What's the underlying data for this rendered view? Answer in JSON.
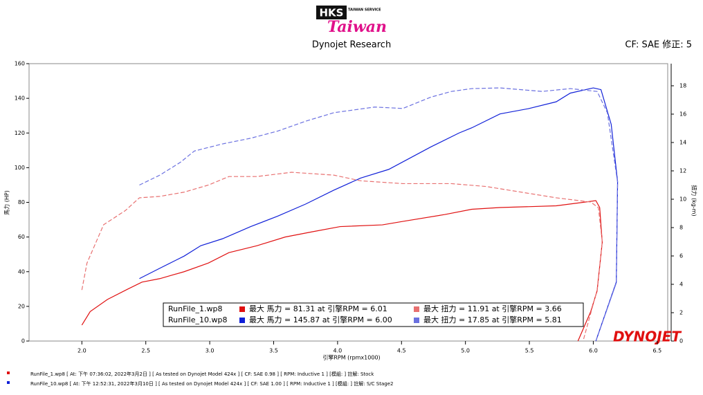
{
  "header": {
    "logo_top": "HKS",
    "logo_sub": "TAIWAN SERVICE",
    "logo_script": "Taiwan",
    "title": "Dynojet Research",
    "correction": "CF: SAE 修正: 5"
  },
  "chart_data": {
    "type": "line",
    "x_label": "引擎RPM (rpmx1000)",
    "y_label": "馬力 (HP)",
    "y2_label": "扭力 (kg-m)",
    "xlim": [
      1.587,
      6.582
    ],
    "xticks": [
      {
        "value": 2,
        "label": "2.0"
      },
      2.5,
      {
        "value": 3,
        "label": "3.0"
      },
      3.5,
      {
        "value": 4,
        "label": "4.0"
      },
      4.5,
      {
        "value": 5,
        "label": "5.0"
      },
      5.5,
      {
        "value": 6,
        "label": "6.0"
      },
      6.5
    ],
    "ylim": [
      0,
      160
    ],
    "yticks": [
      0,
      20,
      40,
      60,
      80,
      100,
      120,
      140,
      160
    ],
    "y2lim": [
      0,
      19.56
    ],
    "y2ticks": [
      0,
      2,
      4,
      6,
      8,
      10,
      12,
      14,
      16,
      18
    ],
    "legend_files": [
      "RunFile_1.wp8",
      "RunFile_10.wp8"
    ],
    "series": [
      {
        "name": "最大 馬力 = 81.31 at 引擎RPM = 6.01",
        "color": "#e01010",
        "dashed": false,
        "x": [
          2.0,
          2.065,
          2.2,
          2.36,
          2.47,
          2.61,
          2.8,
          2.99,
          3.15,
          3.37,
          3.59,
          3.8,
          4.02,
          4.35,
          4.51,
          4.84,
          5.05,
          5.27,
          5.71,
          5.92,
          6.02,
          6.05,
          6.07,
          6.03,
          5.98,
          5.88
        ],
        "values": [
          9.2,
          17,
          24,
          30,
          34,
          36,
          40,
          45,
          51,
          55,
          60,
          63,
          66,
          67,
          69,
          73,
          76,
          77,
          78,
          80,
          81,
          77,
          57,
          29,
          17,
          0
        ]
      },
      {
        "name": "最大 扭力 = 11.91 at 引擎RPM = 3.66",
        "color": "#e87070",
        "dashed": true,
        "axis": "y2",
        "x": [
          2.0,
          2.04,
          2.17,
          2.34,
          2.45,
          2.61,
          2.8,
          2.99,
          3.15,
          3.37,
          3.64,
          3.97,
          4.18,
          4.51,
          4.89,
          5.16,
          5.71,
          5.98,
          6.04,
          6.07,
          6.03,
          5.92
        ],
        "values": [
          3.6,
          5.5,
          8.2,
          9.2,
          10.1,
          10.2,
          10.5,
          11.0,
          11.6,
          11.6,
          11.9,
          11.7,
          11.3,
          11.1,
          11.1,
          10.9,
          10.1,
          9.8,
          9.4,
          7.0,
          3.6,
          0
        ]
      },
      {
        "name": "最大 馬力 = 145.87 at 引擎RPM = 6.00",
        "color": "#1020d8",
        "dashed": false,
        "x": [
          2.45,
          2.61,
          2.8,
          2.93,
          3.1,
          3.32,
          3.53,
          3.75,
          3.97,
          4.18,
          4.4,
          4.73,
          4.95,
          5.05,
          5.27,
          5.49,
          5.71,
          5.82,
          6.0,
          6.06,
          6.14,
          6.19,
          6.18,
          6.02
        ],
        "values": [
          36,
          42,
          49,
          55,
          59,
          66,
          72,
          79,
          87,
          94,
          99,
          112,
          120,
          123,
          131,
          134,
          138,
          143,
          146,
          145,
          125,
          92,
          34,
          0
        ]
      },
      {
        "name": "最大 扭力 = 17.85 at 引擎RPM = 5.81",
        "color": "#6a70e0",
        "dashed": true,
        "axis": "y2",
        "x": [
          2.45,
          2.61,
          2.77,
          2.88,
          3.1,
          3.32,
          3.53,
          3.75,
          3.97,
          4.29,
          4.51,
          4.73,
          4.89,
          5.05,
          5.27,
          5.6,
          5.82,
          6.03,
          6.11,
          6.19,
          6.18,
          6.02
        ],
        "values": [
          11.0,
          11.7,
          12.6,
          13.4,
          13.9,
          14.3,
          14.8,
          15.5,
          16.1,
          16.5,
          16.4,
          17.2,
          17.6,
          17.8,
          17.85,
          17.6,
          17.8,
          17.6,
          16.1,
          11.2,
          4.1,
          0
        ]
      }
    ]
  },
  "watermark": "DYNOJET",
  "footer": [
    "RunFile_1.wp8  [ At: 下午 07:36:02, 2022年3月2日 ] [ As tested on Dynojet Model 424x ] [ CF: SAE 0.98 ] [ RPM: Inductive 1 ] [模組: ] 註解: Stock",
    "RunFile_10.wp8  [ At: 下午 12:52:31, 2022年3月10日 ] [ As tested on Dynojet Model 424x ] [ CF: SAE 1.00 ] [ RPM: Inductive 1 ] [模組: ] 註解: S/C Stage2"
  ]
}
